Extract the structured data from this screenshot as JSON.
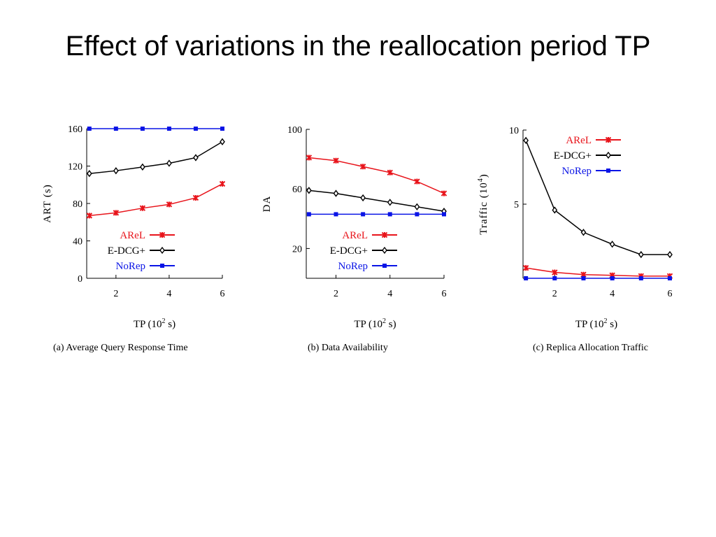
{
  "slide": {
    "title": "Effect of variations in the reallocation period TP"
  },
  "chart_data": [
    {
      "type": "line",
      "caption": "(a)  Average Query Response Time",
      "xlabel": "TP (10",
      "xlabel_sup": "2",
      "xlabel_end": " s)",
      "ylabel": "ART (s)",
      "xlim": [
        0.9,
        6
      ],
      "ylim": [
        0,
        160
      ],
      "xticks": [
        2,
        4,
        6
      ],
      "yticks": [
        0,
        40,
        80,
        120,
        160
      ],
      "x": [
        1,
        2,
        3,
        4,
        5,
        6
      ],
      "legend": "bottom-right",
      "series": [
        {
          "name": "AReL",
          "color": "#e8141b",
          "marker": "star",
          "values": [
            67,
            70,
            75,
            79,
            86,
            101
          ]
        },
        {
          "name": "E-DCG+",
          "color": "#000000",
          "marker": "diamond",
          "values": [
            112,
            115,
            119,
            123,
            129,
            146
          ]
        },
        {
          "name": "NoRep",
          "color": "#0a14e6",
          "marker": "square",
          "values": [
            160,
            160,
            160,
            160,
            160,
            160
          ]
        }
      ]
    },
    {
      "type": "line",
      "caption": "(b)  Data Availability",
      "xlabel": "TP (10",
      "xlabel_sup": "2",
      "xlabel_end": " s)",
      "ylabel": "DA",
      "xlim": [
        0.9,
        6
      ],
      "ylim": [
        0,
        100
      ],
      "xticks": [
        2,
        4,
        6
      ],
      "yticks": [
        20,
        60,
        100
      ],
      "x": [
        1,
        2,
        3,
        4,
        5,
        6
      ],
      "legend": "bottom-right",
      "series": [
        {
          "name": "AReL",
          "color": "#e8141b",
          "marker": "star",
          "values": [
            81,
            79,
            75,
            71,
            65,
            57
          ]
        },
        {
          "name": "E-DCG+",
          "color": "#000000",
          "marker": "diamond",
          "values": [
            59,
            57,
            54,
            51,
            48,
            45
          ]
        },
        {
          "name": "NoRep",
          "color": "#0a14e6",
          "marker": "square",
          "values": [
            43,
            43,
            43,
            43,
            43,
            43
          ]
        }
      ]
    },
    {
      "type": "line",
      "caption": "(c)  Replica Allocation Traffic",
      "xlabel": "TP (10",
      "xlabel_sup": "2",
      "xlabel_end": " s)",
      "ylabel": "Traffic (10",
      "ylabel_sup": "4",
      "ylabel_end": ")",
      "xlim": [
        0.9,
        6
      ],
      "ylim": [
        0,
        10
      ],
      "xticks": [
        2,
        4,
        6
      ],
      "yticks": [
        5,
        10
      ],
      "x": [
        1,
        2,
        3,
        4,
        5,
        6
      ],
      "legend": "top-right",
      "series": [
        {
          "name": "AReL",
          "color": "#e8141b",
          "marker": "star",
          "values": [
            0.7,
            0.4,
            0.25,
            0.2,
            0.15,
            0.15
          ]
        },
        {
          "name": "E-DCG+",
          "color": "#000000",
          "marker": "diamond",
          "values": [
            9.3,
            4.6,
            3.1,
            2.3,
            1.6,
            1.6
          ]
        },
        {
          "name": "NoRep",
          "color": "#0a14e6",
          "marker": "square",
          "values": [
            0,
            0,
            0,
            0,
            0,
            0
          ]
        }
      ]
    }
  ]
}
